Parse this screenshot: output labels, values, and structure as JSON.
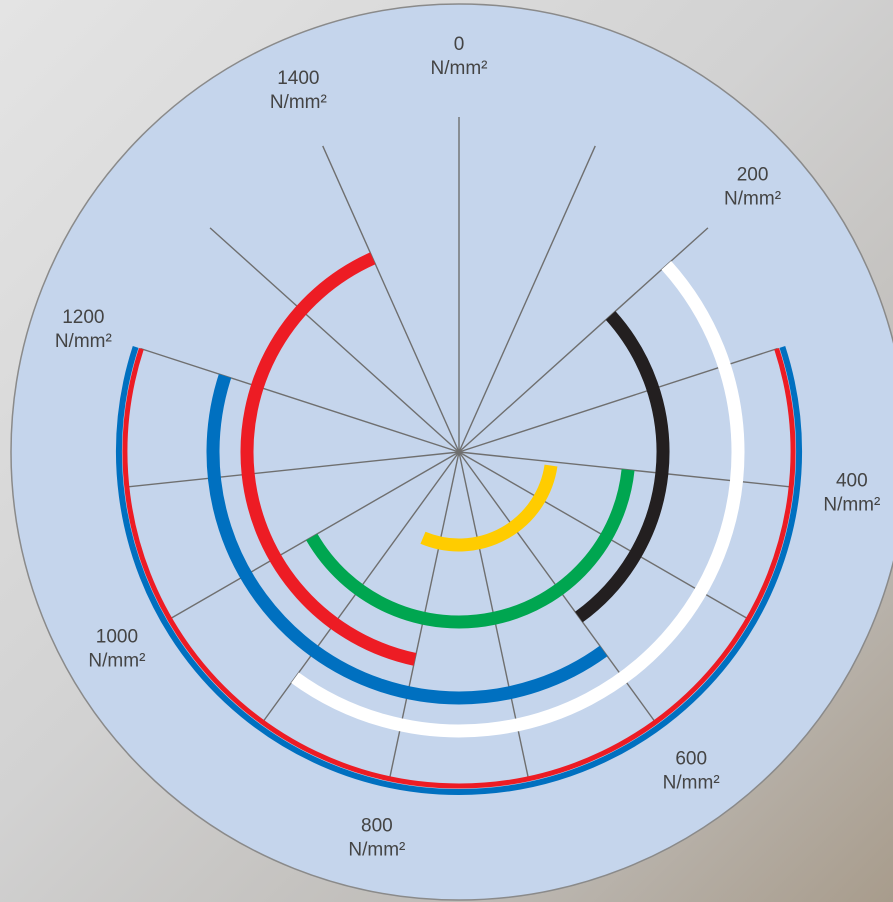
{
  "chart_data": {
    "type": "radial_range",
    "unit": "N/mm²",
    "anglelim": [
      0,
      1500
    ],
    "ticks": [
      0,
      200,
      400,
      600,
      800,
      1000,
      1200,
      1400
    ],
    "grid_ticks": [
      0,
      100,
      200,
      300,
      400,
      500,
      600,
      700,
      800,
      900,
      1000,
      1100,
      1200,
      1300,
      1400
    ],
    "grid": true,
    "series": [
      {
        "color": "#ffcc00",
        "values": [
          410,
          845
        ]
      },
      {
        "color": "#00a650",
        "values": [
          400,
          1000
        ]
      },
      {
        "color": "#231f20",
        "values": [
          200,
          600
        ]
      },
      {
        "color": "#ed1c24",
        "values": [
          800,
          1400
        ]
      },
      {
        "color": "#0070c0",
        "values": [
          600,
          1200
        ]
      },
      {
        "color": "#ffffff",
        "values": [
          200,
          900
        ]
      },
      {
        "color": "#ed1c24",
        "values": [
          300,
          1200
        ]
      },
      {
        "color": "#0070c0",
        "values": [
          300,
          1200
        ]
      }
    ]
  }
}
